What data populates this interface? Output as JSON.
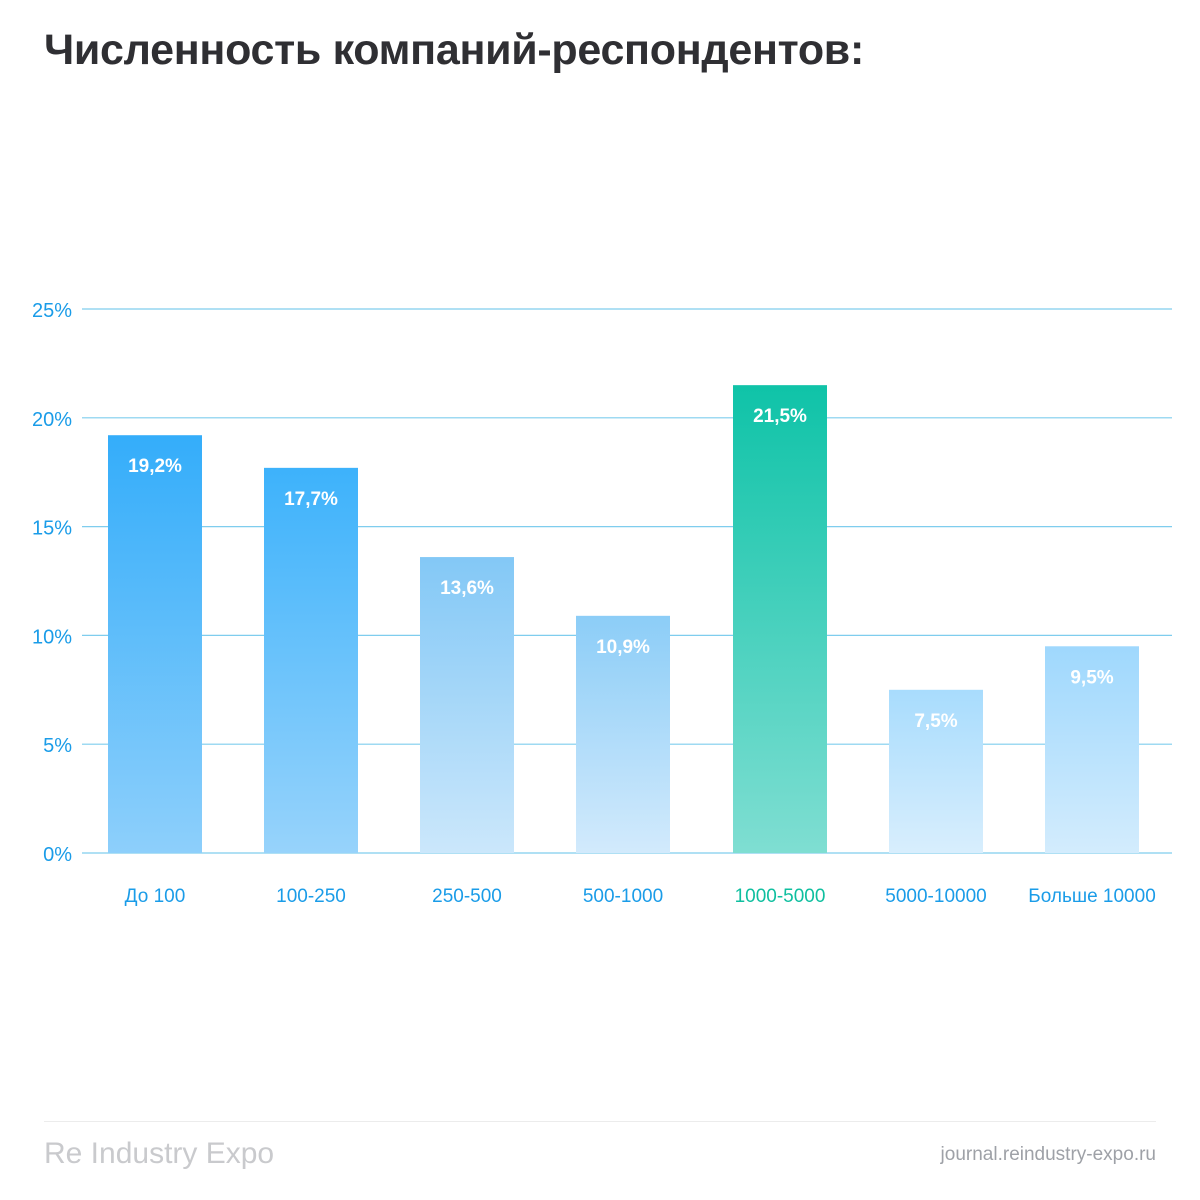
{
  "title": "Численность компаний-респондентов:",
  "chart_data": {
    "type": "bar",
    "title": "Численность компаний-респондентов:",
    "xlabel": "",
    "ylabel": "",
    "ylim": [
      0,
      25
    ],
    "yticks": [
      0,
      5,
      10,
      15,
      20,
      25
    ],
    "ytick_labels": [
      "0%",
      "5%",
      "10%",
      "15%",
      "20%",
      "25%"
    ],
    "categories": [
      "До 100",
      "100-250",
      "250-500",
      "500-1000",
      "1000-5000",
      "5000-10000",
      "Больше 10000"
    ],
    "values": [
      19.2,
      17.7,
      13.6,
      10.9,
      21.5,
      7.5,
      9.5
    ],
    "value_labels": [
      "19,2%",
      "17,7%",
      "13,6%",
      "10,9%",
      "21,5%",
      "7,5%",
      "9,5%"
    ],
    "highlight_index": 4,
    "grid": true,
    "colors": {
      "axis_text": "#1a9ce8",
      "grid": "#7fcdee",
      "highlight_text": "#0fbf9f",
      "bar_strong_top": "#34adfa",
      "bar_strong_bottom": "#8dcffb",
      "bar_mid_top": "#83c8f6",
      "bar_mid_bottom": "#cbe7fb",
      "bar_light_top": "#a8dcfd",
      "bar_light_bottom": "#d8eefd",
      "highlight_top": "#0fc3a8",
      "highlight_bottom": "#7fded2",
      "value_text": "#ffffff"
    }
  },
  "footer": {
    "brand": "Re Industry Expo",
    "url": "journal.reindustry-expo.ru"
  }
}
